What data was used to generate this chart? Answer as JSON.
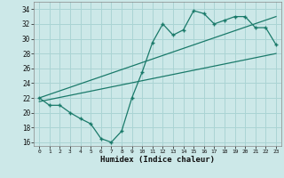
{
  "xlabel": "Humidex (Indice chaleur)",
  "bg_color": "#cce8e8",
  "grid_color": "#aad4d4",
  "line_color": "#1a7a6a",
  "xlim": [
    -0.5,
    23.5
  ],
  "ylim": [
    15.5,
    35.0
  ],
  "xticks": [
    0,
    1,
    2,
    3,
    4,
    5,
    6,
    7,
    8,
    9,
    10,
    11,
    12,
    13,
    14,
    15,
    16,
    17,
    18,
    19,
    20,
    21,
    22,
    23
  ],
  "yticks": [
    16,
    18,
    20,
    22,
    24,
    26,
    28,
    30,
    32,
    34
  ],
  "line1_x": [
    0,
    1,
    2,
    3,
    4,
    5,
    6,
    7,
    8,
    9,
    10,
    11,
    12,
    13,
    14,
    15,
    16,
    17,
    18,
    19,
    20,
    21,
    22,
    23
  ],
  "line1_y": [
    22,
    21,
    21,
    20,
    19.2,
    18.5,
    16.5,
    16,
    17.5,
    22,
    25.5,
    29.5,
    32,
    30.5,
    31.2,
    33.8,
    33.4,
    32,
    32.5,
    33,
    33,
    31.5,
    31.5,
    29.2
  ],
  "line2_x": [
    0,
    23
  ],
  "line2_y": [
    22,
    33
  ],
  "line3_x": [
    0,
    23
  ],
  "line3_y": [
    21.5,
    28
  ]
}
